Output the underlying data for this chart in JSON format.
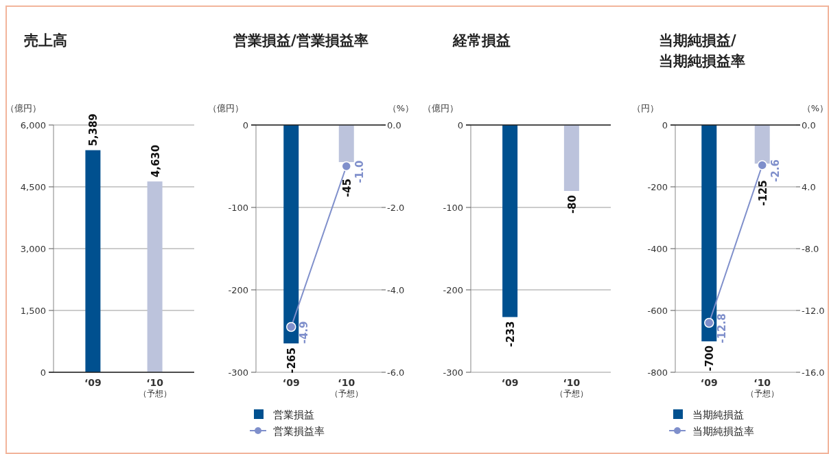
{
  "chart_data": [
    {
      "type": "bar",
      "title": "売上高",
      "ylabel": "（億円）",
      "categories": [
        "‘09",
        "‘10\n（予想）"
      ],
      "series": [
        {
          "colors": [
            "#00508f",
            "#bcc3dc"
          ],
          "values": [
            5389,
            4630
          ],
          "value_labels": [
            "5,389",
            "4,630"
          ]
        }
      ],
      "ylim": [
        0,
        6000
      ],
      "yticks": [
        0,
        {
          "value": 1500,
          "label": "1,500"
        },
        {
          "value": 3000,
          "label": "3,000"
        },
        {
          "value": 4500,
          "label": "4,500"
        },
        {
          "value": 6000,
          "label": "6,000"
        }
      ],
      "grid": "y"
    },
    {
      "type": "bar",
      "title": "営業損益/営業損益率",
      "ylabel": "（億円）",
      "y2label": "（%）",
      "categories": [
        "‘09",
        "‘10\n（予想）"
      ],
      "series": [
        {
          "name": "営業損益",
          "colors": [
            "#00508f",
            "#bcc3dc"
          ],
          "values": [
            -265,
            -45
          ],
          "value_labels": [
            "-265",
            "-45"
          ]
        },
        {
          "type": "line",
          "name": "営業損益率",
          "color": "#7f8fcb",
          "axis": "y2",
          "values": [
            -4.9,
            -1.0
          ],
          "value_labels": [
            "-4.9",
            "-1.0"
          ]
        }
      ],
      "ylim": [
        -300,
        0
      ],
      "yticks": [
        -300,
        -200,
        -100,
        0
      ],
      "y2lim": [
        -6,
        0
      ],
      "y2ticks": [
        {
          "value": -6,
          "label": "-6.0"
        },
        {
          "value": -4,
          "label": "-4.0"
        },
        {
          "value": -2,
          "label": "-2.0"
        },
        {
          "value": 0,
          "label": "0.0"
        }
      ],
      "grid": "y",
      "legend": "bottom",
      "marker": "circle"
    },
    {
      "type": "bar",
      "title": "経常損益",
      "ylabel": "（億円）",
      "categories": [
        "‘09",
        "‘10\n（予想）"
      ],
      "series": [
        {
          "colors": [
            "#00508f",
            "#bcc3dc"
          ],
          "values": [
            -233,
            -80
          ],
          "value_labels": [
            "-233",
            "-80"
          ]
        }
      ],
      "ylim": [
        -300,
        0
      ],
      "yticks": [
        -300,
        -200,
        -100,
        0
      ],
      "grid": "y"
    },
    {
      "type": "bar",
      "title": "当期純損益/当期純損益率",
      "ylabel": "（円）",
      "y2label": "（%）",
      "categories": [
        "‘09",
        "‘10\n（予想）"
      ],
      "series": [
        {
          "name": "当期純損益",
          "colors": [
            "#00508f",
            "#bcc3dc"
          ],
          "values": [
            -700,
            -125
          ],
          "value_labels": [
            "-700",
            "-125"
          ]
        },
        {
          "type": "line",
          "name": "当期純損益率",
          "color": "#7f8fcb",
          "axis": "y2",
          "values": [
            -12.8,
            -2.6
          ],
          "value_labels": [
            "-12.8",
            "-2.6"
          ]
        }
      ],
      "ylim": [
        -800,
        0
      ],
      "yticks": [
        -800,
        -600,
        -400,
        -200,
        0
      ],
      "y2lim": [
        -16,
        0
      ],
      "y2ticks": [
        {
          "value": -16,
          "label": "-16.0"
        },
        {
          "value": -12,
          "label": "-12.0"
        },
        {
          "value": -8,
          "label": "-8.0"
        },
        {
          "value": -4,
          "label": "4.0"
        },
        {
          "value": 0,
          "label": "0.0"
        }
      ],
      "grid": "y",
      "legend": "bottom",
      "marker": "circle"
    }
  ]
}
